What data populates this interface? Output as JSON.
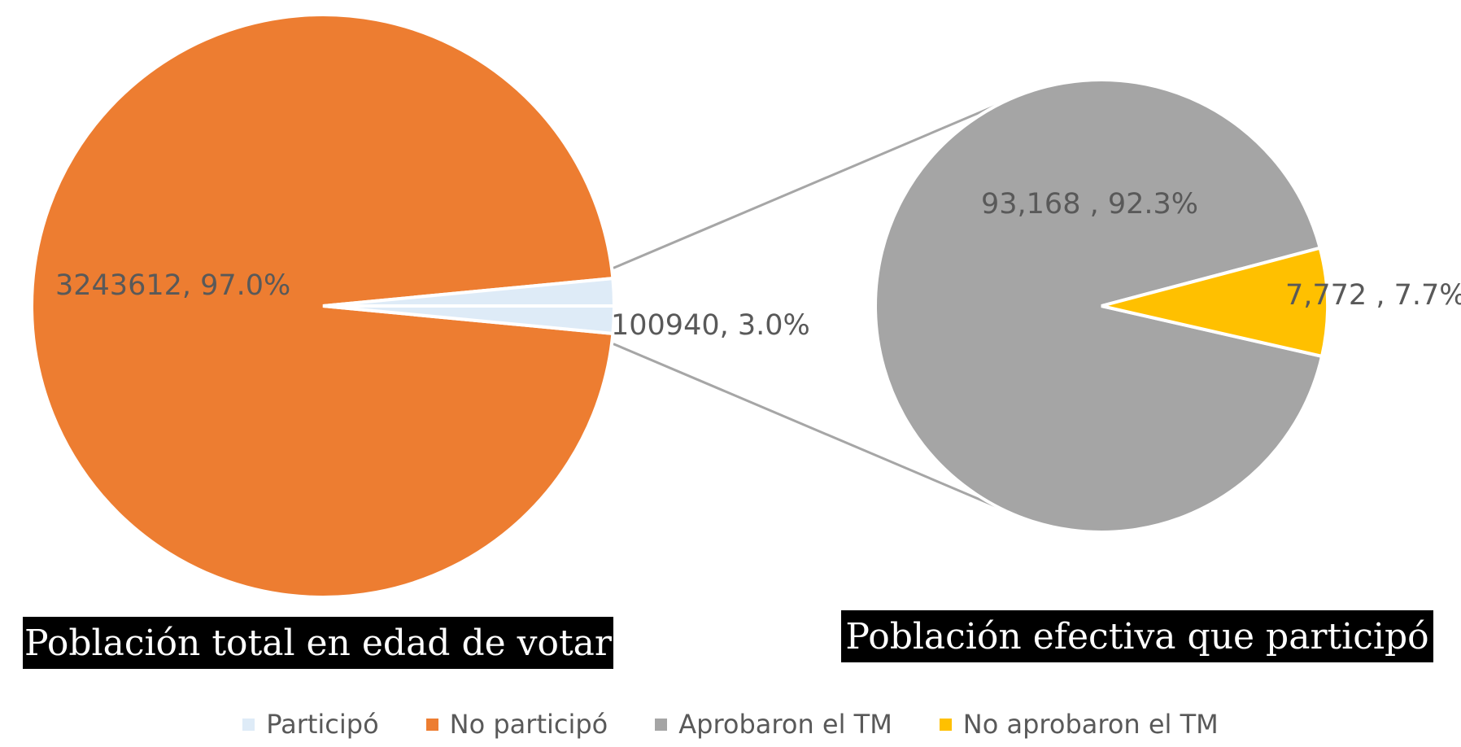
{
  "chart_data": {
    "type": "pie",
    "subtype": "pie-of-pie",
    "primary": {
      "title": "Población total en edad de votar",
      "slices": [
        {
          "name": "No participó",
          "value": 3243612,
          "label": "3243612, 97.0%",
          "color": "#ED7D31"
        },
        {
          "name": "Participó",
          "value": 100940,
          "label": "100940, 3.0%",
          "color": "#DEEBF7"
        }
      ]
    },
    "secondary": {
      "title": "Población efectiva que participó",
      "slices": [
        {
          "name": "Aprobaron el TM",
          "value": 93168,
          "label": "93,168 , 92.3%",
          "color": "#A5A5A5"
        },
        {
          "name": "No aprobaron el TM",
          "value": 7772,
          "label": "7,772 , 7.7%",
          "color": "#FFC000"
        }
      ]
    },
    "legend": [
      {
        "label": "Participó",
        "color": "#DEEBF7"
      },
      {
        "label": "No participó",
        "color": "#ED7D31"
      },
      {
        "label": "Aprobaron el TM",
        "color": "#A5A5A5"
      },
      {
        "label": "No aprobaron el TM",
        "color": "#FFC000"
      }
    ],
    "legend_position": "bottom"
  }
}
